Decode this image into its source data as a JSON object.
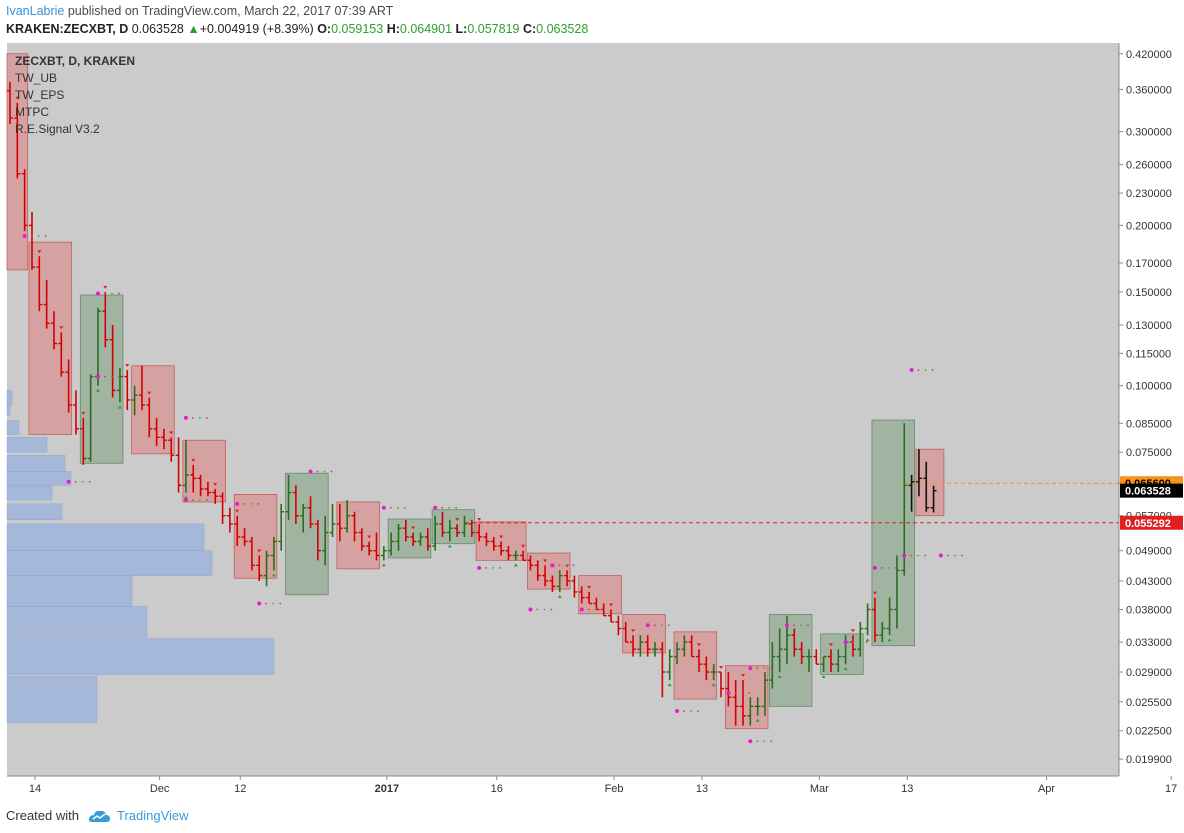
{
  "header": {
    "author": "IvanLabrie",
    "published": " published on TradingView.com, March 22, 2017 07:39 ART",
    "symbol": "KRAKEN:ZECXBT, D",
    "last": "0.063528",
    "change": "+0.004919 (+8.39%)",
    "o_label": "O:",
    "o_value": "0.059153",
    "h_label": "H:",
    "h_value": "0.064901",
    "l_label": "L:",
    "l_value": "0.057819",
    "c_label": "C:",
    "c_value": "0.063528",
    "colors": {
      "up": "#2ca02c",
      "author": "#3a8fd6"
    }
  },
  "legend": {
    "title": "ZECXBT, D, KRAKEN",
    "items": [
      "TW_UB",
      "TW_EPS",
      "MTPC",
      "R.E.Signal V3.2"
    ]
  },
  "footer": {
    "created": "Created with",
    "brand": "TradingView"
  },
  "chart_data": {
    "type": "candlestick",
    "scale": "log",
    "y_ticks": [
      0.42,
      0.36,
      0.3,
      0.26,
      0.23,
      0.2,
      0.17,
      0.15,
      0.13,
      0.115,
      0.1,
      0.085,
      0.075,
      0.0656,
      0.057,
      0.049,
      0.043,
      0.038,
      0.033,
      0.029,
      0.0255,
      0.0225,
      0.0199
    ],
    "y_tick_labels": [
      "0.420000",
      "0.360000",
      "0.300000",
      "0.260000",
      "0.230000",
      "0.200000",
      "0.170000",
      "0.150000",
      "0.130000",
      "0.115000",
      "0.100000",
      "0.085000",
      "0.075000",
      "0.065600",
      "0.057000",
      "0.049000",
      "0.043000",
      "0.038000",
      "0.033000",
      "0.029000",
      "0.025500",
      "0.022500",
      "0.019900"
    ],
    "ylim": [
      0.0185,
      0.44
    ],
    "x_tick_labels": [
      {
        "day": 0,
        "label": "14"
      },
      {
        "day": 17,
        "label": "Dec"
      },
      {
        "day": 28,
        "label": "12"
      },
      {
        "day": 48,
        "label": "2017"
      },
      {
        "day": 63,
        "label": "16"
      },
      {
        "day": 79,
        "label": "Feb"
      },
      {
        "day": 91,
        "label": "13"
      },
      {
        "day": 107,
        "label": "Mar"
      },
      {
        "day": 119,
        "label": "13"
      },
      {
        "day": 138,
        "label": "Apr"
      },
      {
        "day": 155,
        "label": "17"
      }
    ],
    "price_markers": [
      {
        "value": 0.0656,
        "label": "0.065600",
        "color": "#f7931a",
        "text_color": "#000000"
      },
      {
        "value": 0.063528,
        "label": "0.063528",
        "color": "#000000",
        "text_color": "#ffffff"
      },
      {
        "value": 0.055292,
        "label": "0.055292",
        "color": "#e02020",
        "text_color": "#ffffff"
      }
    ],
    "colors": {
      "down": "#d40000",
      "up": "#2a6e1a",
      "neutral": "#111111",
      "signal": "#e020c8",
      "down_box": "#e0807f",
      "up_box": "#7fa07f",
      "volume_profile": "#9fb5dd"
    },
    "boxes": [
      {
        "start": -1,
        "end": 2,
        "high": 0.42,
        "low": 0.165,
        "dir": "down"
      },
      {
        "start": 3,
        "end": 8,
        "high": 0.186,
        "low": 0.081,
        "dir": "down"
      },
      {
        "start": 10,
        "end": 15,
        "high": 0.148,
        "low": 0.0715,
        "dir": "up"
      },
      {
        "start": 17,
        "end": 22,
        "high": 0.109,
        "low": 0.0745,
        "dir": "down"
      },
      {
        "start": 24,
        "end": 29,
        "high": 0.079,
        "low": 0.0605,
        "dir": "down"
      },
      {
        "start": 31,
        "end": 36,
        "high": 0.0625,
        "low": 0.0435,
        "dir": "down"
      },
      {
        "start": 38,
        "end": 43,
        "high": 0.0685,
        "low": 0.0405,
        "dir": "up"
      },
      {
        "start": 45,
        "end": 50,
        "high": 0.0605,
        "low": 0.0453,
        "dir": "down"
      },
      {
        "start": 52,
        "end": 57,
        "high": 0.0562,
        "low": 0.0475,
        "dir": "up"
      },
      {
        "start": 58,
        "end": 63,
        "high": 0.0585,
        "low": 0.0505,
        "dir": "up"
      },
      {
        "start": 64,
        "end": 70,
        "high": 0.0555,
        "low": 0.047,
        "dir": "down"
      },
      {
        "start": 71,
        "end": 76,
        "high": 0.0485,
        "low": 0.0415,
        "dir": "down"
      },
      {
        "start": 78,
        "end": 83,
        "high": 0.044,
        "low": 0.0373,
        "dir": "down"
      },
      {
        "start": 84,
        "end": 89,
        "high": 0.0372,
        "low": 0.0315,
        "dir": "down"
      },
      {
        "start": 91,
        "end": 96,
        "high": 0.0345,
        "low": 0.0258,
        "dir": "down"
      },
      {
        "start": 98,
        "end": 103,
        "high": 0.0298,
        "low": 0.0227,
        "dir": "down"
      },
      {
        "start": 104,
        "end": 109,
        "high": 0.0372,
        "low": 0.025,
        "dir": "up"
      },
      {
        "start": 111,
        "end": 116,
        "high": 0.0342,
        "low": 0.0287,
        "dir": "up"
      },
      {
        "start": 118,
        "end": 123,
        "high": 0.0862,
        "low": 0.0325,
        "dir": "up"
      },
      {
        "start": 124,
        "end": 127,
        "high": 0.076,
        "low": 0.057,
        "dir": "down"
      }
    ],
    "candles": [
      [
        0.358,
        0.372,
        0.31,
        0.318
      ],
      [
        0.318,
        0.34,
        0.245,
        0.25
      ],
      [
        0.25,
        0.255,
        0.195,
        0.2
      ],
      [
        0.2,
        0.212,
        0.165,
        0.167
      ],
      [
        0.167,
        0.175,
        0.138,
        0.142
      ],
      [
        0.142,
        0.158,
        0.128,
        0.131
      ],
      [
        0.131,
        0.138,
        0.117,
        0.12
      ],
      [
        0.12,
        0.126,
        0.104,
        0.106
      ],
      [
        0.106,
        0.112,
        0.089,
        0.092
      ],
      [
        0.092,
        0.098,
        0.081,
        0.083
      ],
      [
        0.083,
        0.087,
        0.071,
        0.073
      ],
      [
        0.073,
        0.105,
        0.072,
        0.104
      ],
      [
        0.104,
        0.14,
        0.1,
        0.138
      ],
      [
        0.138,
        0.15,
        0.118,
        0.122
      ],
      [
        0.122,
        0.13,
        0.095,
        0.098
      ],
      [
        0.098,
        0.108,
        0.093,
        0.104
      ],
      [
        0.104,
        0.107,
        0.09,
        0.094
      ],
      [
        0.094,
        0.1,
        0.088,
        0.096
      ],
      [
        0.096,
        0.109,
        0.09,
        0.092
      ],
      [
        0.092,
        0.095,
        0.08,
        0.083
      ],
      [
        0.083,
        0.087,
        0.077,
        0.08
      ],
      [
        0.08,
        0.083,
        0.076,
        0.079
      ],
      [
        0.079,
        0.08,
        0.072,
        0.074
      ],
      [
        0.074,
        0.08,
        0.063,
        0.065
      ],
      [
        0.065,
        0.079,
        0.063,
        0.068
      ],
      [
        0.068,
        0.071,
        0.063,
        0.067
      ],
      [
        0.067,
        0.068,
        0.062,
        0.064
      ],
      [
        0.064,
        0.066,
        0.062,
        0.063
      ],
      [
        0.063,
        0.064,
        0.06,
        0.062
      ],
      [
        0.062,
        0.063,
        0.055,
        0.057
      ],
      [
        0.057,
        0.059,
        0.053,
        0.055
      ],
      [
        0.055,
        0.057,
        0.05,
        0.052
      ],
      [
        0.052,
        0.054,
        0.05,
        0.051
      ],
      [
        0.051,
        0.052,
        0.045,
        0.046
      ],
      [
        0.046,
        0.048,
        0.043,
        0.044
      ],
      [
        0.044,
        0.049,
        0.042,
        0.048
      ],
      [
        0.048,
        0.052,
        0.045,
        0.051
      ],
      [
        0.051,
        0.06,
        0.049,
        0.058
      ],
      [
        0.058,
        0.068,
        0.056,
        0.063
      ],
      [
        0.063,
        0.065,
        0.055,
        0.057
      ],
      [
        0.057,
        0.06,
        0.053,
        0.059
      ],
      [
        0.059,
        0.062,
        0.054,
        0.055
      ],
      [
        0.055,
        0.056,
        0.047,
        0.049
      ],
      [
        0.049,
        0.057,
        0.046,
        0.053
      ],
      [
        0.053,
        0.06,
        0.052,
        0.055
      ],
      [
        0.055,
        0.06,
        0.051,
        0.054
      ],
      [
        0.054,
        0.061,
        0.053,
        0.057
      ],
      [
        0.057,
        0.058,
        0.051,
        0.053
      ],
      [
        0.053,
        0.054,
        0.049,
        0.05
      ],
      [
        0.05,
        0.051,
        0.048,
        0.049
      ],
      [
        0.049,
        0.053,
        0.047,
        0.048
      ],
      [
        0.048,
        0.05,
        0.047,
        0.049
      ],
      [
        0.049,
        0.053,
        0.048,
        0.051
      ],
      [
        0.051,
        0.055,
        0.049,
        0.054
      ],
      [
        0.054,
        0.056,
        0.051,
        0.052
      ],
      [
        0.052,
        0.053,
        0.05,
        0.051
      ],
      [
        0.051,
        0.053,
        0.05,
        0.052
      ],
      [
        0.052,
        0.054,
        0.049,
        0.05
      ],
      [
        0.05,
        0.057,
        0.049,
        0.055
      ],
      [
        0.055,
        0.058,
        0.052,
        0.053
      ],
      [
        0.053,
        0.056,
        0.051,
        0.054
      ],
      [
        0.054,
        0.055,
        0.052,
        0.053
      ],
      [
        0.053,
        0.057,
        0.052,
        0.055
      ],
      [
        0.055,
        0.056,
        0.052,
        0.053
      ],
      [
        0.053,
        0.055,
        0.051,
        0.052
      ],
      [
        0.052,
        0.053,
        0.05,
        0.051
      ],
      [
        0.051,
        0.052,
        0.049,
        0.05
      ],
      [
        0.05,
        0.051,
        0.048,
        0.049
      ],
      [
        0.049,
        0.05,
        0.047,
        0.048
      ],
      [
        0.048,
        0.049,
        0.047,
        0.048
      ],
      [
        0.048,
        0.049,
        0.047,
        0.047
      ],
      [
        0.047,
        0.048,
        0.045,
        0.046
      ],
      [
        0.046,
        0.047,
        0.043,
        0.044
      ],
      [
        0.044,
        0.046,
        0.042,
        0.043
      ],
      [
        0.043,
        0.044,
        0.041,
        0.042
      ],
      [
        0.042,
        0.045,
        0.041,
        0.044
      ],
      [
        0.044,
        0.045,
        0.042,
        0.043
      ],
      [
        0.043,
        0.044,
        0.04,
        0.041
      ],
      [
        0.041,
        0.042,
        0.039,
        0.04
      ],
      [
        0.04,
        0.041,
        0.039,
        0.039
      ],
      [
        0.039,
        0.04,
        0.038,
        0.038
      ],
      [
        0.038,
        0.039,
        0.037,
        0.037
      ],
      [
        0.037,
        0.038,
        0.036,
        0.036
      ],
      [
        0.036,
        0.037,
        0.034,
        0.035
      ],
      [
        0.035,
        0.036,
        0.033,
        0.033
      ],
      [
        0.033,
        0.034,
        0.031,
        0.032
      ],
      [
        0.032,
        0.034,
        0.031,
        0.033
      ],
      [
        0.033,
        0.034,
        0.031,
        0.032
      ],
      [
        0.032,
        0.033,
        0.031,
        0.032
      ],
      [
        0.032,
        0.033,
        0.026,
        0.029
      ],
      [
        0.029,
        0.032,
        0.028,
        0.031
      ],
      [
        0.031,
        0.033,
        0.03,
        0.032
      ],
      [
        0.032,
        0.034,
        0.031,
        0.033
      ],
      [
        0.033,
        0.034,
        0.031,
        0.031
      ],
      [
        0.031,
        0.032,
        0.029,
        0.03
      ],
      [
        0.03,
        0.031,
        0.028,
        0.029
      ],
      [
        0.029,
        0.03,
        0.028,
        0.029
      ],
      [
        0.029,
        0.029,
        0.026,
        0.027
      ],
      [
        0.027,
        0.029,
        0.025,
        0.026
      ],
      [
        0.026,
        0.028,
        0.023,
        0.025
      ],
      [
        0.025,
        0.028,
        0.023,
        0.024
      ],
      [
        0.024,
        0.026,
        0.023,
        0.025
      ],
      [
        0.025,
        0.026,
        0.024,
        0.025
      ],
      [
        0.025,
        0.029,
        0.024,
        0.028
      ],
      [
        0.028,
        0.033,
        0.027,
        0.031
      ],
      [
        0.031,
        0.035,
        0.029,
        0.032
      ],
      [
        0.032,
        0.037,
        0.03,
        0.034
      ],
      [
        0.034,
        0.035,
        0.031,
        0.032
      ],
      [
        0.032,
        0.033,
        0.03,
        0.031
      ],
      [
        0.031,
        0.032,
        0.029,
        0.031
      ],
      [
        0.031,
        0.032,
        0.03,
        0.03
      ],
      [
        0.03,
        0.031,
        0.029,
        0.031
      ],
      [
        0.031,
        0.032,
        0.029,
        0.03
      ],
      [
        0.03,
        0.032,
        0.029,
        0.031
      ],
      [
        0.031,
        0.034,
        0.03,
        0.033
      ],
      [
        0.033,
        0.034,
        0.031,
        0.032
      ],
      [
        0.032,
        0.036,
        0.031,
        0.035
      ],
      [
        0.035,
        0.039,
        0.034,
        0.038
      ],
      [
        0.038,
        0.04,
        0.033,
        0.034
      ],
      [
        0.034,
        0.036,
        0.033,
        0.035
      ],
      [
        0.035,
        0.04,
        0.034,
        0.038
      ],
      [
        0.038,
        0.048,
        0.035,
        0.045
      ],
      [
        0.045,
        0.085,
        0.044,
        0.065
      ],
      [
        0.065,
        0.068,
        0.058,
        0.066
      ],
      [
        0.066,
        0.076,
        0.062,
        0.067
      ],
      [
        0.067,
        0.072,
        0.058,
        0.059
      ],
      [
        0.059,
        0.064901,
        0.057819,
        0.063528
      ]
    ],
    "signals": [
      {
        "day": 2,
        "value": 0.191
      },
      {
        "day": 12,
        "value": 0.149
      },
      {
        "day": 24,
        "value": 0.087
      },
      {
        "day": 12,
        "value": 0.104
      },
      {
        "day": 8,
        "value": 0.066
      },
      {
        "day": 24,
        "value": 0.061
      },
      {
        "day": 31,
        "value": 0.06
      },
      {
        "day": 41,
        "value": 0.069
      },
      {
        "day": 34,
        "value": 0.039
      },
      {
        "day": 51,
        "value": 0.059
      },
      {
        "day": 58,
        "value": 0.059
      },
      {
        "day": 64,
        "value": 0.0455
      },
      {
        "day": 74,
        "value": 0.046
      },
      {
        "day": 71,
        "value": 0.038
      },
      {
        "day": 78,
        "value": 0.038
      },
      {
        "day": 87,
        "value": 0.0355
      },
      {
        "day": 91,
        "value": 0.0245
      },
      {
        "day": 98,
        "value": 0.0265
      },
      {
        "day": 101,
        "value": 0.0215
      },
      {
        "day": 101,
        "value": 0.0295
      },
      {
        "day": 106,
        "value": 0.0355
      },
      {
        "day": 114,
        "value": 0.033
      },
      {
        "day": 118,
        "value": 0.0455
      },
      {
        "day": 122,
        "value": 0.048
      },
      {
        "day": 123,
        "value": 0.107
      },
      {
        "day": 127,
        "value": 0.048
      }
    ],
    "volume_profile": [
      {
        "top": 0.098,
        "bottom": 0.092,
        "width": 5
      },
      {
        "top": 0.092,
        "bottom": 0.088,
        "width": 3
      },
      {
        "top": 0.086,
        "bottom": 0.081,
        "width": 12
      },
      {
        "top": 0.08,
        "bottom": 0.075,
        "width": 40
      },
      {
        "top": 0.074,
        "bottom": 0.069,
        "width": 58
      },
      {
        "top": 0.069,
        "bottom": 0.065,
        "width": 64
      },
      {
        "top": 0.065,
        "bottom": 0.061,
        "width": 45
      },
      {
        "top": 0.06,
        "bottom": 0.056,
        "width": 55
      },
      {
        "top": 0.055,
        "bottom": 0.049,
        "width": 197
      },
      {
        "top": 0.049,
        "bottom": 0.044,
        "width": 205
      },
      {
        "top": 0.044,
        "bottom": 0.0385,
        "width": 125
      },
      {
        "top": 0.0385,
        "bottom": 0.0337,
        "width": 140
      },
      {
        "top": 0.0335,
        "bottom": 0.0287,
        "width": 267
      },
      {
        "top": 0.0285,
        "bottom": 0.0233,
        "width": 90
      }
    ]
  }
}
